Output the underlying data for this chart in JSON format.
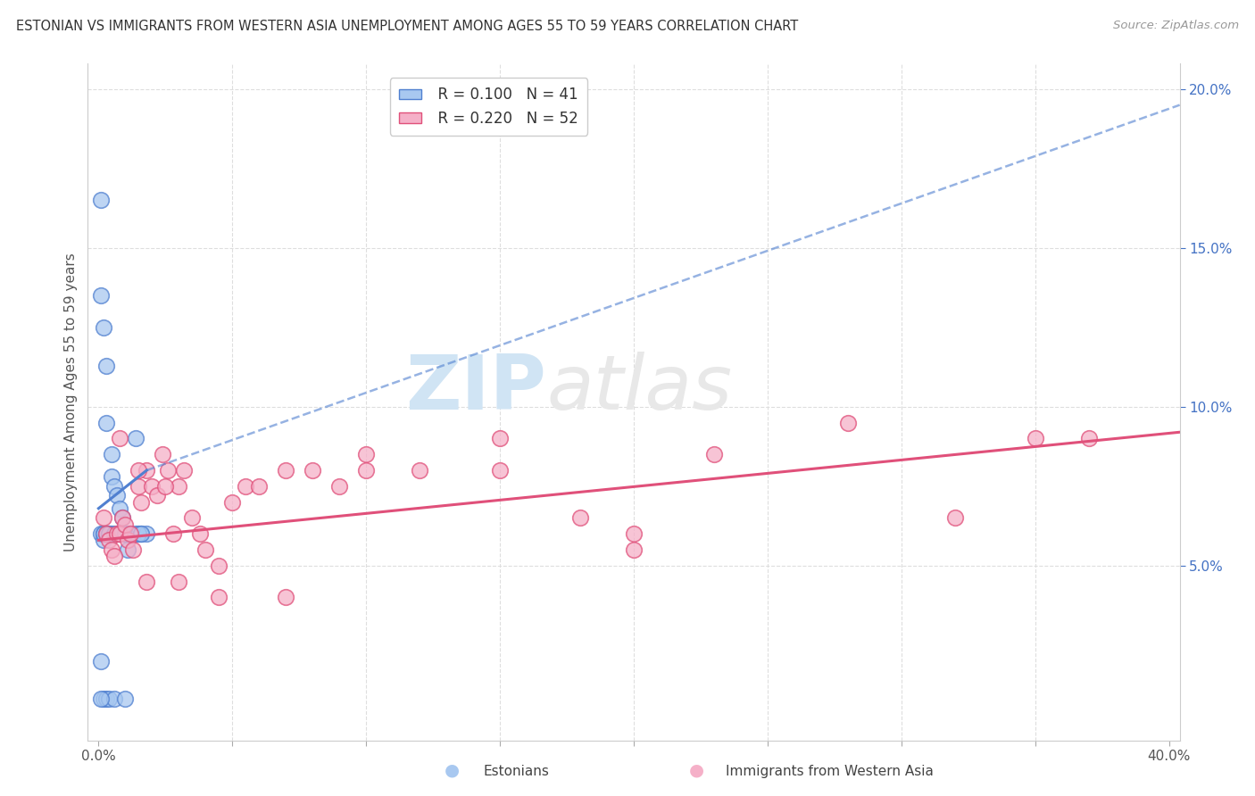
{
  "title": "ESTONIAN VS IMMIGRANTS FROM WESTERN ASIA UNEMPLOYMENT AMONG AGES 55 TO 59 YEARS CORRELATION CHART",
  "source": "Source: ZipAtlas.com",
  "ylabel": "Unemployment Among Ages 55 to 59 years",
  "xlim": [
    -0.004,
    0.404
  ],
  "ylim": [
    -0.005,
    0.208
  ],
  "xticks": [
    0.0,
    0.05,
    0.1,
    0.15,
    0.2,
    0.25,
    0.3,
    0.35,
    0.4
  ],
  "xticklabels": [
    "0.0%",
    "",
    "",
    "",
    "",
    "",
    "",
    "",
    "40.0%"
  ],
  "yticks_right": [
    0.05,
    0.1,
    0.15,
    0.2
  ],
  "ytick_labels_right": [
    "5.0%",
    "10.0%",
    "15.0%",
    "20.0%"
  ],
  "legend_r1": "R = 0.100",
  "legend_n1": "N = 41",
  "legend_r2": "R = 0.220",
  "legend_n2": "N = 52",
  "series1_label": "Estonians",
  "series2_label": "Immigrants from Western Asia",
  "series1_color": "#A8C8F0",
  "series2_color": "#F5B0C8",
  "trendline1_color": "#5080D0",
  "trendline2_color": "#E0507A",
  "watermark_zip": "ZIP",
  "watermark_atlas": "atlas",
  "watermark_color": "#D0E4F4",
  "background_color": "#FFFFFF",
  "grid_color": "#DEDEDE",
  "estonians_x": [
    0.001,
    0.001,
    0.001,
    0.001,
    0.002,
    0.002,
    0.002,
    0.002,
    0.003,
    0.003,
    0.003,
    0.003,
    0.004,
    0.004,
    0.005,
    0.005,
    0.005,
    0.006,
    0.006,
    0.007,
    0.007,
    0.008,
    0.008,
    0.009,
    0.01,
    0.01,
    0.011,
    0.012,
    0.014,
    0.016,
    0.018,
    0.001,
    0.002,
    0.003,
    0.004,
    0.006,
    0.008,
    0.01,
    0.014,
    0.015,
    0.016
  ],
  "estonians_y": [
    0.165,
    0.135,
    0.06,
    0.02,
    0.125,
    0.06,
    0.058,
    0.008,
    0.113,
    0.095,
    0.06,
    0.008,
    0.06,
    0.008,
    0.085,
    0.078,
    0.06,
    0.075,
    0.008,
    0.072,
    0.06,
    0.068,
    0.06,
    0.065,
    0.06,
    0.008,
    0.055,
    0.06,
    0.06,
    0.06,
    0.06,
    0.008,
    0.06,
    0.06,
    0.06,
    0.06,
    0.06,
    0.06,
    0.09,
    0.06,
    0.06
  ],
  "immigrants_x": [
    0.002,
    0.003,
    0.004,
    0.005,
    0.006,
    0.007,
    0.008,
    0.009,
    0.01,
    0.011,
    0.012,
    0.013,
    0.015,
    0.016,
    0.018,
    0.02,
    0.022,
    0.024,
    0.026,
    0.028,
    0.03,
    0.032,
    0.035,
    0.038,
    0.04,
    0.045,
    0.05,
    0.055,
    0.06,
    0.07,
    0.08,
    0.09,
    0.1,
    0.12,
    0.15,
    0.18,
    0.2,
    0.23,
    0.28,
    0.32,
    0.35,
    0.37,
    0.008,
    0.015,
    0.025,
    0.018,
    0.03,
    0.045,
    0.07,
    0.1,
    0.15,
    0.2
  ],
  "immigrants_y": [
    0.065,
    0.06,
    0.058,
    0.055,
    0.053,
    0.06,
    0.06,
    0.065,
    0.063,
    0.058,
    0.06,
    0.055,
    0.075,
    0.07,
    0.08,
    0.075,
    0.072,
    0.085,
    0.08,
    0.06,
    0.075,
    0.08,
    0.065,
    0.06,
    0.055,
    0.05,
    0.07,
    0.075,
    0.075,
    0.08,
    0.08,
    0.075,
    0.085,
    0.08,
    0.09,
    0.065,
    0.06,
    0.085,
    0.095,
    0.065,
    0.09,
    0.09,
    0.09,
    0.08,
    0.075,
    0.045,
    0.045,
    0.04,
    0.04,
    0.08,
    0.08,
    0.055
  ],
  "trendline1_x_start": 0.0,
  "trendline1_x_solid_end": 0.018,
  "trendline1_x_dash_end": 0.404,
  "trendline1_y_start": 0.068,
  "trendline1_y_solid_end": 0.08,
  "trendline1_y_dash_end": 0.195,
  "trendline2_x_start": 0.0,
  "trendline2_x_end": 0.404,
  "trendline2_y_start": 0.058,
  "trendline2_y_end": 0.092
}
